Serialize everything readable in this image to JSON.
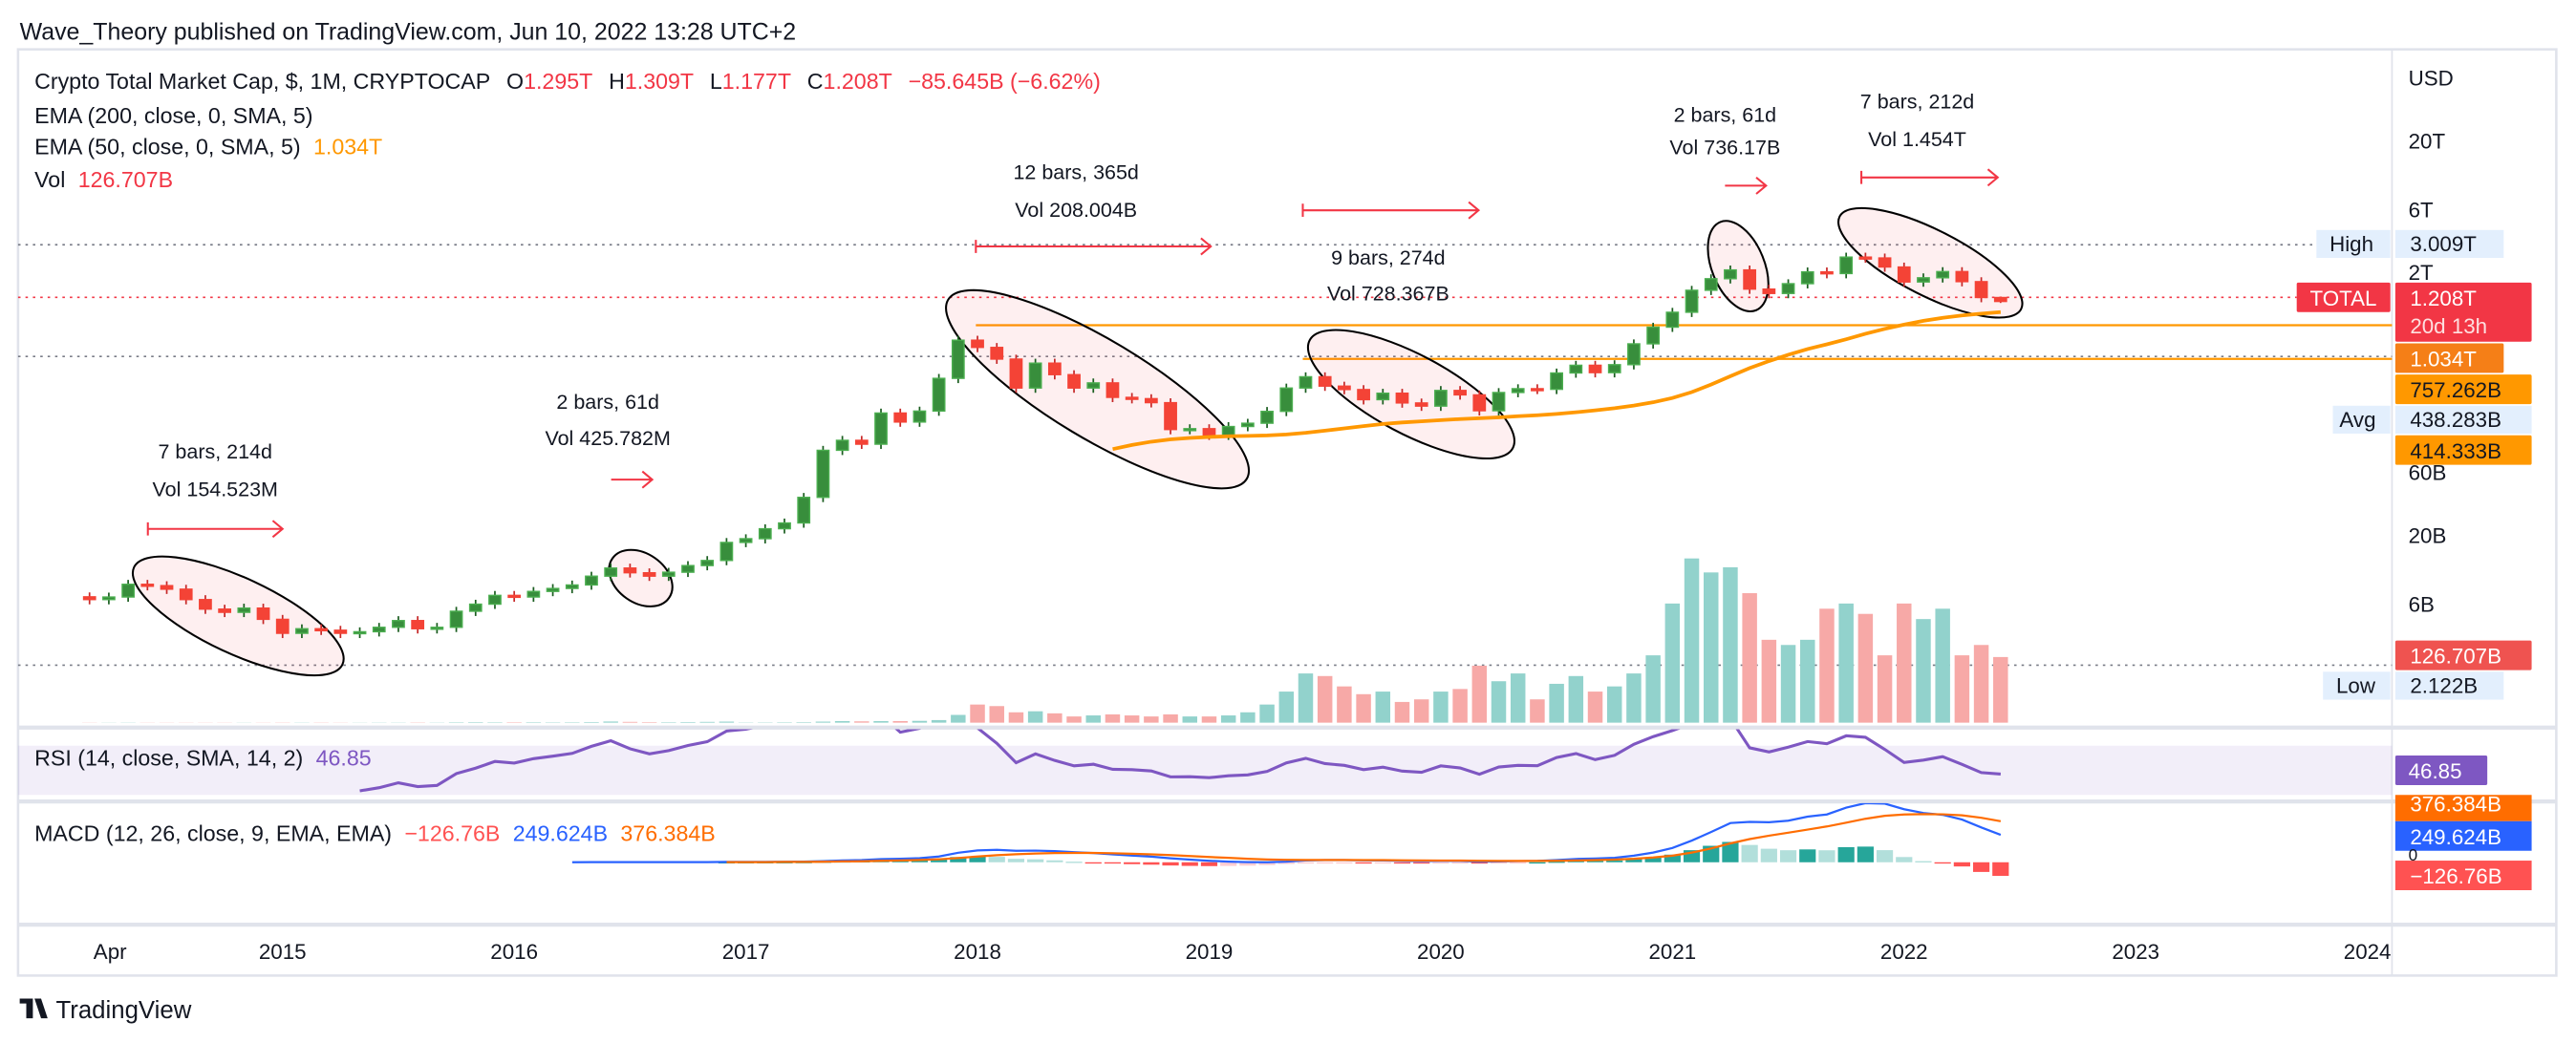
{
  "header": {
    "published": "Wave_Theory published on TradingView.com, Jun 10, 2022 13:28 UTC+2"
  },
  "legend": {
    "symbol": "Crypto Total Market Cap, $, 1M, CRYPTOCAP",
    "o_label": "O",
    "o": "1.295T",
    "h_label": "H",
    "h": "1.309T",
    "l_label": "L",
    "l": "1.177T",
    "c_label": "C",
    "c": "1.208T",
    "change": "−85.645B (−6.62%)",
    "ema200": "EMA (200, close, 0, SMA, 5)",
    "ema50": "EMA (50, close, 0, SMA, 5)",
    "ema50_value": "1.034T",
    "vol_label": "Vol",
    "vol_value": "126.707B"
  },
  "price_axis": {
    "currency": "USD",
    "ticks": [
      {
        "label": "20T",
        "value_b": 20000
      },
      {
        "label": "6T",
        "value_b": 6000
      },
      {
        "label": "2T",
        "value_b": 2000
      },
      {
        "label": "60B",
        "value_b": 60
      },
      {
        "label": "20B",
        "value_b": 20
      },
      {
        "label": "6B",
        "value_b": 6
      }
    ],
    "high_label": "High",
    "high_value": "3.009T",
    "symbol_tag": "TOTAL",
    "last_price": "1.208T",
    "countdown": "20d 13h",
    "ema50_badge": "1.034T",
    "badge_757": "757.262B",
    "avg_label": "Avg",
    "avg_value": "438.283B",
    "badge_414": "414.333B",
    "volume_badge": "126.707B",
    "low_label": "Low",
    "low_value": "2.122B"
  },
  "annotations": [
    {
      "range": "7 bars, 214d",
      "volume": "Vol 154.523M"
    },
    {
      "range": "2 bars, 61d",
      "volume": "Vol 425.782M"
    },
    {
      "range": "12 bars, 365d",
      "volume": "Vol 208.004B"
    },
    {
      "range": "9 bars, 274d",
      "volume": "Vol 728.367B"
    },
    {
      "range": "2 bars, 61d",
      "volume": "Vol 736.17B"
    },
    {
      "range": "7 bars, 212d",
      "volume": "Vol 1.454T"
    }
  ],
  "rsi": {
    "label": "RSI (14, close, SMA, 14, 2)",
    "value": "46.85"
  },
  "macd": {
    "label": "MACD (12, 26, close, 9, EMA, EMA)",
    "hist": "−126.76B",
    "macd": "249.624B",
    "signal": "376.384B",
    "zero": "0"
  },
  "time_axis": [
    "Apr",
    "2015",
    "2016",
    "2017",
    "2018",
    "2019",
    "2020",
    "2021",
    "2022",
    "2023",
    "2024"
  ],
  "branding": "TradingView",
  "colors": {
    "up": "#4caf50",
    "up_body": "#388e3c",
    "down": "#f44336",
    "vol_up": "#92d2cc",
    "vol_down": "#f7a9a7",
    "ema50": "#ff9800",
    "rsi": "#7e57c2",
    "macd": "#2962ff",
    "signal": "#ff6d00",
    "annotation": "#f23645",
    "high_low_badge": "#e3effd"
  },
  "chart_data": {
    "type": "candlestick",
    "interval": "1M",
    "start": "2014-03",
    "end": "2022-06",
    "scale": "log",
    "ylabel": "USD",
    "ylim_b": [
      2,
      30000
    ],
    "close_b": [
      6.5,
      6.8,
      8.5,
      8.3,
      7.8,
      6.5,
      5.5,
      5.2,
      5.6,
      4.6,
      3.6,
      3.9,
      3.8,
      3.6,
      3.7,
      4.0,
      4.5,
      3.9,
      4.0,
      5.3,
      6.0,
      7.0,
      6.8,
      7.5,
      7.9,
      8.4,
      9.8,
      11.3,
      10.4,
      9.8,
      10.5,
      11.8,
      12.9,
      17.7,
      18.9,
      22.5,
      24.9,
      39,
      89,
      106,
      99,
      171,
      146,
      177,
      314,
      613,
      540,
      440,
      265,
      410,
      335,
      265,
      290,
      225,
      220,
      205,
      128,
      130,
      116,
      135,
      143,
      176,
      265,
      323,
      274,
      258,
      216,
      242,
      204,
      193,
      254,
      235,
      178,
      245,
      262,
      259,
      345,
      395,
      347,
      399,
      575,
      770,
      1000,
      1470,
      1800,
      2100,
      1500,
      1390,
      1650,
      2030,
      1970,
      2630,
      2590,
      2210,
      1700,
      1830,
      2040,
      1710,
      1295,
      1208
    ],
    "volume_b": [
      0.3,
      0.3,
      0.4,
      0.3,
      0.3,
      0.3,
      0.3,
      0.3,
      0.3,
      0.3,
      0.4,
      0.4,
      0.4,
      0.3,
      0.3,
      0.4,
      0.4,
      0.5,
      0.4,
      0.8,
      1.0,
      0.8,
      0.8,
      0.9,
      0.7,
      0.8,
      1.2,
      2.2,
      1.5,
      1.0,
      0.9,
      1.2,
      1.5,
      2.0,
      0.5,
      0.6,
      0.8,
      1,
      2,
      3,
      2.5,
      3,
      3,
      3.5,
      5,
      15,
      35,
      32,
      20,
      22,
      18,
      12,
      14,
      16,
      14,
      12,
      16,
      12,
      12,
      14,
      20,
      35,
      60,
      95,
      90,
      70,
      55,
      60,
      40,
      45,
      60,
      65,
      110,
      80,
      95,
      45,
      75,
      90,
      60,
      70,
      95,
      130,
      230,
      317,
      290,
      300,
      250,
      160,
      150,
      160,
      220,
      230,
      210,
      130,
      230,
      200,
      220,
      130,
      150,
      126.707
    ],
    "last_bar_b": {
      "open": 1295,
      "high": 1309,
      "low": 1177,
      "close": 1208
    },
    "all_time_high_b": 3009,
    "all_time_low_b": 2.122,
    "horizontal_levels_b": [
      796,
      1034
    ]
  }
}
